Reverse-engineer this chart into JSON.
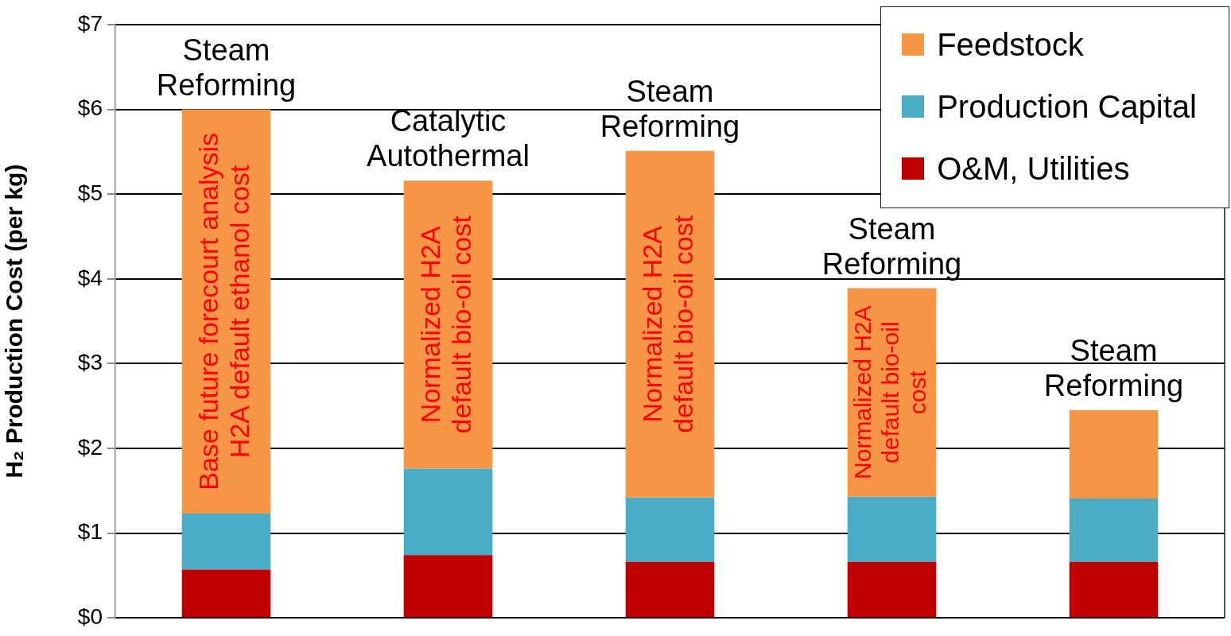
{
  "chart_data": {
    "type": "bar",
    "stacked": true,
    "categories": [
      "Steam Reforming",
      "Catalytic Autothermal",
      "Steam Reforming",
      "Steam Reforming",
      "Steam Reforming"
    ],
    "series": [
      {
        "name": "O&M, Utilities",
        "color": "#c00000",
        "values": [
          0.57,
          0.74,
          0.66,
          0.66,
          0.66
        ]
      },
      {
        "name": "Production Capital",
        "color": "#4bacc6",
        "values": [
          0.66,
          1.02,
          0.76,
          0.77,
          0.75
        ]
      },
      {
        "name": "Feedstock",
        "color": "#f79646",
        "values": [
          4.77,
          3.4,
          4.09,
          2.46,
          1.04
        ]
      }
    ],
    "ylabel": "H₂ Production Cost (per kg)",
    "ylim": [
      0,
      7
    ],
    "yticks": [
      {
        "value": 0,
        "label": "$0"
      },
      {
        "value": 1,
        "label": "$1"
      },
      {
        "value": 2,
        "label": "$2"
      },
      {
        "value": 3,
        "label": "$3"
      },
      {
        "value": 4,
        "label": "$4"
      },
      {
        "value": 5,
        "label": "$5"
      },
      {
        "value": 6,
        "label": "$6"
      },
      {
        "value": 7,
        "label": "$7"
      }
    ],
    "grid": "y",
    "legend": "top right",
    "annotations": [
      "Base future forecourt analysis\nH2A default ethanol cost",
      "Normalized H2A\ndefault bio-oil cost",
      "Normalized H2A\ndefault bio-oil cost",
      "Normalized H2A\ndefault bio-oil\ncost"
    ]
  }
}
